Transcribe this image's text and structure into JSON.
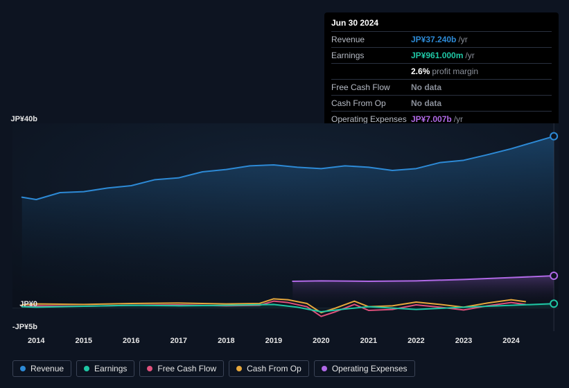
{
  "tooltip": {
    "date": "Jun 30 2024",
    "rows": [
      {
        "label": "Revenue",
        "value": "JP¥37.240b",
        "unit": "/yr",
        "color": "#2d8ad6"
      },
      {
        "label": "Earnings",
        "value": "JP¥961.000m",
        "unit": "/yr",
        "color": "#1fc7a5"
      },
      {
        "label": "",
        "value": "2.6%",
        "unit": "profit margin",
        "color": "#ffffff"
      },
      {
        "label": "Free Cash Flow",
        "value": "No data",
        "unit": "",
        "color": "#8a8f99"
      },
      {
        "label": "Cash From Op",
        "value": "No data",
        "unit": "",
        "color": "#8a8f99"
      },
      {
        "label": "Operating Expenses",
        "value": "JP¥7.007b",
        "unit": "/yr",
        "color": "#b069e6"
      }
    ]
  },
  "chart": {
    "type": "line-area",
    "background": "#0d1421",
    "pxWidth": 788,
    "pxHeight": 300,
    "xmin": 2013.5,
    "xmax": 2025.0,
    "ymin": -5,
    "ymax": 40,
    "xticks": [
      2014,
      2015,
      2016,
      2017,
      2018,
      2019,
      2020,
      2021,
      2022,
      2023,
      2024
    ],
    "yticks": [
      {
        "v": 40,
        "label": "JP¥40b"
      },
      {
        "v": 0,
        "label": "JP¥0"
      },
      {
        "v": -5,
        "label": "-JP¥5b"
      }
    ],
    "trace_line_color": "#2a3140",
    "trace_x": 2024.9,
    "series": {
      "revenue": {
        "label": "Revenue",
        "color": "#2d8ad6",
        "fill": true,
        "fillTop": "rgba(45,138,214,0.35)",
        "x": [
          2013.7,
          2014,
          2014.5,
          2015,
          2015.5,
          2016,
          2016.5,
          2017,
          2017.5,
          2018,
          2018.5,
          2019,
          2019.5,
          2020,
          2020.5,
          2021,
          2021.5,
          2022,
          2022.5,
          2023,
          2023.5,
          2024,
          2024.5,
          2024.9
        ],
        "y": [
          24,
          23.5,
          25,
          25.2,
          26,
          26.5,
          27.8,
          28.2,
          29.5,
          30.0,
          30.8,
          31.0,
          30.5,
          30.2,
          30.8,
          30.5,
          29.8,
          30.2,
          31.5,
          32.0,
          33.2,
          34.5,
          36.0,
          37.2
        ]
      },
      "earnings": {
        "label": "Earnings",
        "color": "#1fc7a5",
        "fill": true,
        "fillTop": "rgba(31,199,165,0.30)",
        "x": [
          2013.7,
          2014,
          2015,
          2016,
          2017,
          2018,
          2019,
          2019.5,
          2020,
          2020.5,
          2021,
          2022,
          2023,
          2024,
          2024.9
        ],
        "y": [
          0.3,
          0.2,
          0.4,
          0.6,
          0.5,
          0.6,
          0.8,
          0.2,
          -0.8,
          -0.2,
          0.3,
          -0.3,
          0.2,
          0.6,
          0.96
        ]
      },
      "fcf": {
        "label": "Free Cash Flow",
        "color": "#e0517c",
        "fill": false,
        "x": [
          2013.7,
          2014,
          2015,
          2016,
          2017,
          2018,
          2018.7,
          2019,
          2019.3,
          2019.7,
          2020,
          2020.3,
          2020.7,
          2021,
          2021.5,
          2022,
          2022.5,
          2023,
          2023.5,
          2024,
          2024.3
        ],
        "y": [
          0.3,
          0.5,
          0.4,
          0.6,
          0.7,
          0.5,
          0.6,
          1.5,
          1.2,
          0.3,
          -1.8,
          -0.8,
          0.8,
          -0.5,
          -0.3,
          0.7,
          0.2,
          -0.4,
          0.5,
          1.2,
          0.8
        ]
      },
      "cfo": {
        "label": "Cash From Op",
        "color": "#e6a73c",
        "fill": false,
        "x": [
          2013.7,
          2014,
          2015,
          2016,
          2017,
          2018,
          2018.7,
          2019,
          2019.3,
          2019.7,
          2020,
          2020.3,
          2020.7,
          2021,
          2021.5,
          2022,
          2022.5,
          2023,
          2023.5,
          2024,
          2024.3
        ],
        "y": [
          0.7,
          0.9,
          0.8,
          1.0,
          1.1,
          0.9,
          1.0,
          2.0,
          1.8,
          1.0,
          -1.0,
          0.0,
          1.5,
          0.3,
          0.5,
          1.3,
          0.8,
          0.2,
          1.1,
          1.8,
          1.4
        ]
      },
      "opex": {
        "label": "Operating Expenses",
        "color": "#b069e6",
        "fill": true,
        "fillTop": "rgba(176,105,230,0.30)",
        "x": [
          2019.4,
          2020,
          2021,
          2022,
          2023,
          2024,
          2024.9
        ],
        "y": [
          5.8,
          5.9,
          5.8,
          5.9,
          6.2,
          6.6,
          7.0
        ]
      }
    },
    "markers": [
      {
        "series": "revenue",
        "color": "#2d8ad6"
      },
      {
        "series": "opex",
        "color": "#b069e6"
      },
      {
        "series": "earnings",
        "color": "#1fc7a5"
      }
    ]
  },
  "legend": [
    {
      "key": "revenue",
      "label": "Revenue",
      "color": "#2d8ad6"
    },
    {
      "key": "earnings",
      "label": "Earnings",
      "color": "#1fc7a5"
    },
    {
      "key": "fcf",
      "label": "Free Cash Flow",
      "color": "#e0517c"
    },
    {
      "key": "cfo",
      "label": "Cash From Op",
      "color": "#e6a73c"
    },
    {
      "key": "opex",
      "label": "Operating Expenses",
      "color": "#b069e6"
    }
  ]
}
